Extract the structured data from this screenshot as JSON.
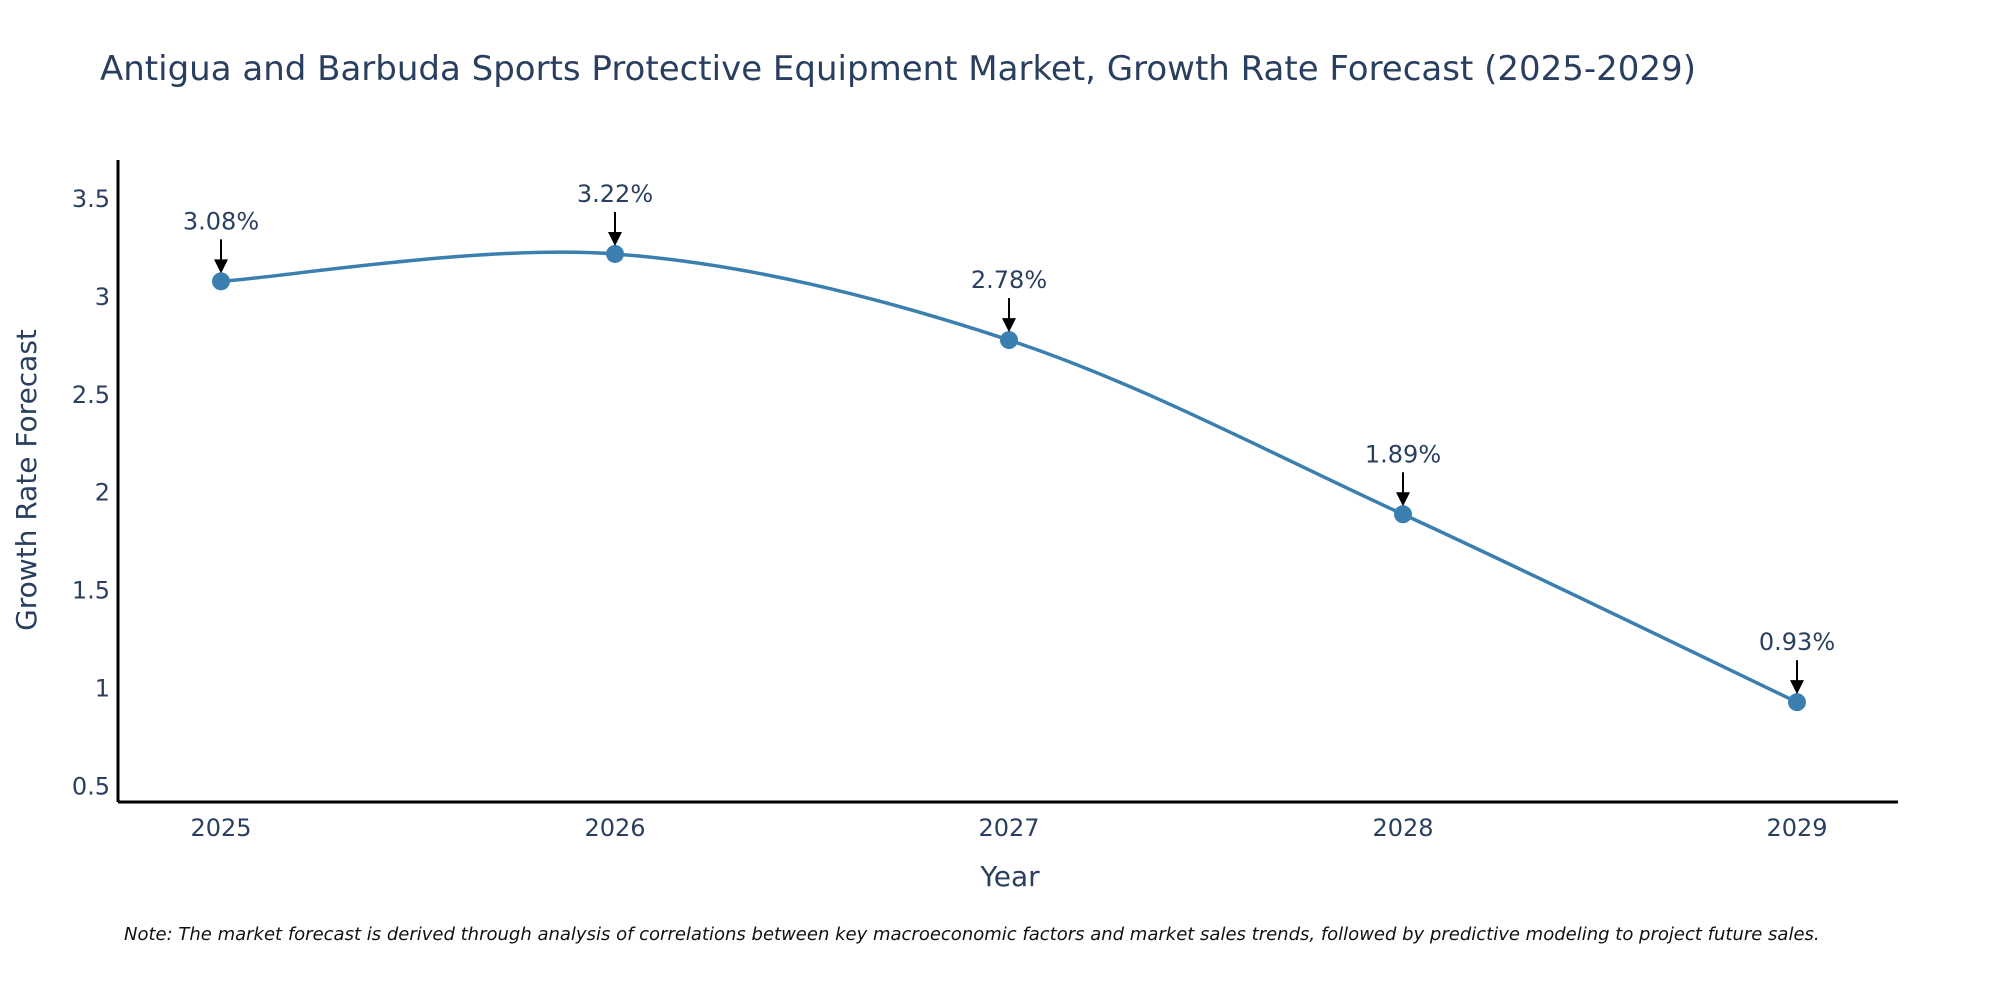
{
  "chart_data": {
    "type": "line",
    "title": "Antigua and Barbuda Sports Protective Equipment Market, Growth Rate Forecast (2025-2029)",
    "xlabel": "Year",
    "ylabel": "Growth Rate Forecast",
    "x": [
      "2025",
      "2026",
      "2027",
      "2028",
      "2029"
    ],
    "values": [
      3.08,
      3.22,
      2.78,
      1.89,
      0.93
    ],
    "data_labels": [
      "3.08%",
      "3.22%",
      "2.78%",
      "1.89%",
      "0.93%"
    ],
    "y_ticks": [
      0.5,
      1,
      1.5,
      2,
      2.5,
      3,
      3.5
    ],
    "y_tick_labels": [
      "0.5",
      "1",
      "1.5",
      "2",
      "2.5",
      "3",
      "3.5"
    ],
    "ylim": [
      0.42,
      3.7
    ],
    "grid": false,
    "line_color": "#3b7fb0",
    "note": "Note: The market forecast is derived through analysis of correlations between key macroeconomic factors and market sales trends, followed by predictive modeling to project future sales."
  }
}
